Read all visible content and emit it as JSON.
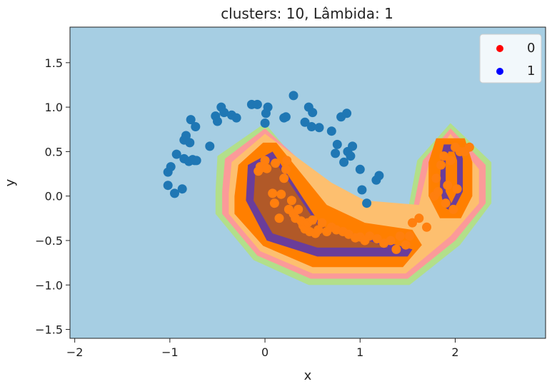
{
  "chart_data": {
    "type": "scatter",
    "title": "clusters: 10, Lâmbida: 1",
    "xlabel": "x",
    "ylabel": "y",
    "xlim": [
      -2.05,
      2.95
    ],
    "ylim": [
      -1.6,
      1.9
    ],
    "xticks": [
      -2,
      -1,
      0,
      1,
      2
    ],
    "yticks": [
      -1.5,
      -1.0,
      -0.5,
      0.0,
      0.5,
      1.0,
      1.5
    ],
    "xtick_labels": [
      "−2",
      "−1",
      "0",
      "1",
      "2"
    ],
    "ytick_labels": [
      "−1.5",
      "−1.0",
      "−0.5",
      "0.0",
      "0.5",
      "1.0",
      "1.5"
    ],
    "grid": false,
    "legend_position": "top-right",
    "legend": [
      {
        "label": "0",
        "color": "#ff0000"
      },
      {
        "label": "1",
        "color": "#0000ff"
      }
    ],
    "background_color": "#a6cee3",
    "decision_regions": [
      {
        "level": 1,
        "color": "#b2df8a",
        "polygon": [
          [
            -0.52,
            0.05
          ],
          [
            -0.52,
            -0.2
          ],
          [
            -0.12,
            -0.72
          ],
          [
            0.46,
            -1.0
          ],
          [
            1.52,
            -1.0
          ],
          [
            2.05,
            -0.55
          ],
          [
            2.38,
            -0.08
          ],
          [
            2.38,
            0.38
          ],
          [
            1.95,
            0.82
          ],
          [
            1.6,
            0.4
          ],
          [
            1.5,
            -0.18
          ],
          [
            0.95,
            -0.15
          ],
          [
            0.6,
            0.05
          ],
          [
            0.0,
            0.82
          ],
          [
            -0.5,
            0.45
          ]
        ]
      },
      {
        "level": 2,
        "color": "#fb9a99",
        "polygon": [
          [
            -0.45,
            0.05
          ],
          [
            -0.45,
            -0.2
          ],
          [
            -0.08,
            -0.67
          ],
          [
            0.48,
            -0.93
          ],
          [
            1.5,
            -0.93
          ],
          [
            2.0,
            -0.5
          ],
          [
            2.32,
            -0.08
          ],
          [
            2.32,
            0.35
          ],
          [
            1.95,
            0.76
          ],
          [
            1.66,
            0.4
          ],
          [
            1.56,
            -0.12
          ],
          [
            1.0,
            -0.08
          ],
          [
            0.66,
            0.12
          ],
          [
            0.0,
            0.76
          ],
          [
            -0.42,
            0.42
          ]
        ]
      },
      {
        "level": 3,
        "color": "#fdbf6f",
        "polygon": [
          [
            -0.38,
            0.03
          ],
          [
            -0.38,
            -0.2
          ],
          [
            -0.05,
            -0.62
          ],
          [
            0.5,
            -0.87
          ],
          [
            1.48,
            -0.87
          ],
          [
            1.95,
            -0.45
          ],
          [
            2.25,
            -0.08
          ],
          [
            2.25,
            0.3
          ],
          [
            1.95,
            0.7
          ],
          [
            1.72,
            0.35
          ],
          [
            1.62,
            -0.1
          ],
          [
            1.05,
            -0.05
          ],
          [
            0.7,
            0.15
          ],
          [
            0.0,
            0.7
          ],
          [
            -0.35,
            0.38
          ]
        ]
      },
      {
        "level": 4,
        "color": "#ff7f00",
        "polygon": [
          [
            -0.32,
            0.0
          ],
          [
            -0.32,
            -0.2
          ],
          [
            -0.02,
            -0.56
          ],
          [
            0.5,
            -0.8
          ],
          [
            1.45,
            -0.8
          ],
          [
            1.65,
            -0.55
          ],
          [
            1.55,
            -0.38
          ],
          [
            1.05,
            -0.3
          ],
          [
            0.65,
            -0.1
          ],
          [
            0.12,
            0.6
          ],
          [
            -0.02,
            0.6
          ],
          [
            -0.28,
            0.35
          ]
        ]
      },
      {
        "level": 5,
        "color": "#ff7f00",
        "polygon": [
          [
            1.72,
            0.38
          ],
          [
            1.8,
            0.65
          ],
          [
            2.1,
            0.65
          ],
          [
            2.18,
            0.38
          ],
          [
            2.18,
            0.0
          ],
          [
            2.06,
            -0.25
          ],
          [
            1.84,
            -0.25
          ],
          [
            1.72,
            0.0
          ]
        ]
      },
      {
        "level": 6,
        "color": "#6a3d9a",
        "polygon": [
          [
            -0.2,
            -0.05
          ],
          [
            0.02,
            -0.5
          ],
          [
            0.55,
            -0.68
          ],
          [
            1.5,
            -0.68
          ],
          [
            1.55,
            -0.6
          ],
          [
            1.05,
            -0.45
          ],
          [
            0.6,
            -0.35
          ],
          [
            0.08,
            0.5
          ],
          [
            -0.18,
            0.35
          ]
        ]
      },
      {
        "level": 7,
        "color": "#b15928",
        "polygon": [
          [
            -0.12,
            -0.05
          ],
          [
            0.08,
            -0.42
          ],
          [
            0.55,
            -0.58
          ],
          [
            1.3,
            -0.58
          ],
          [
            0.95,
            -0.45
          ],
          [
            0.55,
            -0.32
          ],
          [
            0.1,
            0.4
          ],
          [
            -0.1,
            0.3
          ]
        ]
      },
      {
        "level": 8,
        "color": "#6a3d9a",
        "polygon": [
          [
            1.85,
            0.45
          ],
          [
            1.88,
            0.58
          ],
          [
            2.04,
            0.58
          ],
          [
            2.08,
            0.42
          ],
          [
            2.08,
            0.05
          ],
          [
            1.97,
            -0.18
          ],
          [
            1.88,
            -0.12
          ],
          [
            1.84,
            0.1
          ]
        ]
      },
      {
        "level": 9,
        "color": "#ff7f00",
        "polygon": [
          [
            1.9,
            0.4
          ],
          [
            1.93,
            0.5
          ],
          [
            1.99,
            0.5
          ],
          [
            2.02,
            0.4
          ],
          [
            2.02,
            0.05
          ],
          [
            1.96,
            -0.08
          ],
          [
            1.9,
            0.05
          ]
        ]
      }
    ],
    "series": [
      {
        "name": "1",
        "color": "#1f77b4",
        "points": [
          [
            -1.02,
            0.27
          ],
          [
            -1.02,
            0.12
          ],
          [
            -0.99,
            0.33
          ],
          [
            -0.95,
            0.03
          ],
          [
            -0.93,
            0.47
          ],
          [
            -0.87,
            0.08
          ],
          [
            -0.85,
            0.42
          ],
          [
            -0.85,
            0.63
          ],
          [
            -0.83,
            0.68
          ],
          [
            -0.8,
            0.39
          ],
          [
            -0.79,
            0.6
          ],
          [
            -0.78,
            0.86
          ],
          [
            -0.76,
            0.41
          ],
          [
            -0.74,
            0.4
          ],
          [
            -0.73,
            0.78
          ],
          [
            -0.72,
            0.4
          ],
          [
            -0.58,
            0.56
          ],
          [
            -0.52,
            0.9
          ],
          [
            -0.5,
            0.84
          ],
          [
            -0.46,
            1.0
          ],
          [
            -0.43,
            0.94
          ],
          [
            -0.35,
            0.91
          ],
          [
            -0.3,
            0.88
          ],
          [
            -0.14,
            1.03
          ],
          [
            -0.08,
            1.03
          ],
          [
            0.0,
            0.82
          ],
          [
            0.01,
            0.93
          ],
          [
            0.03,
            1.0
          ],
          [
            0.2,
            0.88
          ],
          [
            0.22,
            0.89
          ],
          [
            0.3,
            1.13
          ],
          [
            0.42,
            0.83
          ],
          [
            0.46,
            1.0
          ],
          [
            0.49,
            0.78
          ],
          [
            0.5,
            0.94
          ],
          [
            0.57,
            0.77
          ],
          [
            0.7,
            0.73
          ],
          [
            0.74,
            0.48
          ],
          [
            0.76,
            0.58
          ],
          [
            0.8,
            0.89
          ],
          [
            0.83,
            0.38
          ],
          [
            0.86,
            0.93
          ],
          [
            0.87,
            0.5
          ],
          [
            0.9,
            0.45
          ],
          [
            0.92,
            0.56
          ],
          [
            1.0,
            0.3
          ],
          [
            1.02,
            0.07
          ],
          [
            1.07,
            -0.08
          ],
          [
            1.17,
            0.18
          ],
          [
            1.2,
            0.23
          ]
        ]
      },
      {
        "name": "0",
        "color": "#ff7f0e",
        "points": [
          [
            -0.07,
            0.28
          ],
          [
            -0.05,
            0.33
          ],
          [
            -0.03,
            0.32
          ],
          [
            0.0,
            0.4
          ],
          [
            0.02,
            0.31
          ],
          [
            0.08,
            0.03
          ],
          [
            0.1,
            -0.08
          ],
          [
            0.11,
            0.37
          ],
          [
            0.17,
            0.02
          ],
          [
            0.2,
            0.2
          ],
          [
            0.22,
            0.3
          ],
          [
            0.23,
            0.4
          ],
          [
            0.25,
            -0.15
          ],
          [
            0.3,
            -0.2
          ],
          [
            0.32,
            -0.25
          ],
          [
            0.35,
            -0.15
          ],
          [
            0.38,
            -0.28
          ],
          [
            0.4,
            -0.33
          ],
          [
            0.42,
            -0.37
          ],
          [
            0.45,
            -0.3
          ],
          [
            0.47,
            -0.4
          ],
          [
            0.5,
            -0.27
          ],
          [
            0.53,
            -0.42
          ],
          [
            0.56,
            -0.38
          ],
          [
            0.6,
            -0.3
          ],
          [
            0.65,
            -0.4
          ],
          [
            0.7,
            -0.35
          ],
          [
            0.75,
            -0.38
          ],
          [
            0.82,
            -0.4
          ],
          [
            0.88,
            -0.43
          ],
          [
            0.95,
            -0.47
          ],
          [
            1.0,
            -0.46
          ],
          [
            1.05,
            -0.5
          ],
          [
            1.1,
            -0.45
          ],
          [
            1.18,
            -0.48
          ],
          [
            1.25,
            -0.53
          ],
          [
            1.32,
            -0.5
          ],
          [
            1.38,
            -0.6
          ],
          [
            1.42,
            -0.45
          ],
          [
            1.48,
            -0.55
          ],
          [
            1.52,
            -0.45
          ],
          [
            1.55,
            -0.3
          ],
          [
            1.62,
            -0.25
          ],
          [
            1.7,
            -0.35
          ],
          [
            1.78,
            0.0
          ],
          [
            1.8,
            0.2
          ],
          [
            1.82,
            0.05
          ],
          [
            1.85,
            0.35
          ],
          [
            1.88,
            0.45
          ],
          [
            1.9,
            -0.08
          ],
          [
            1.92,
            0.12
          ],
          [
            1.95,
            0.4
          ],
          [
            1.98,
            -0.15
          ],
          [
            2.0,
            0.55
          ],
          [
            2.02,
            0.08
          ],
          [
            2.05,
            0.5
          ],
          [
            2.1,
            0.5
          ],
          [
            2.15,
            0.55
          ],
          [
            0.15,
            -0.25
          ],
          [
            0.28,
            -0.05
          ]
        ]
      }
    ]
  }
}
